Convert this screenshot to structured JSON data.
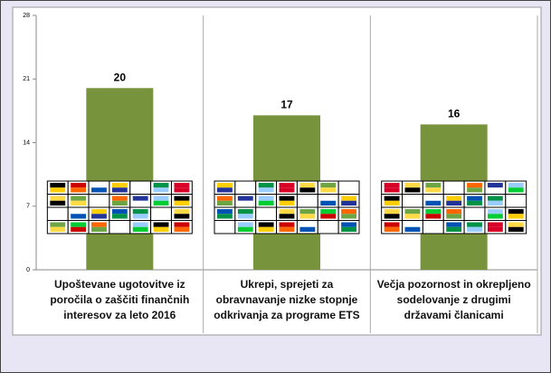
{
  "chart_data": {
    "type": "bar",
    "categories": [
      "Upoštevane ugotovitve iz poročila o zaščiti finančnih interesov za leto 2016",
      "Ukrepi, sprejeti za obravnavanje nizke stopnje odkrivanja za programe ETS",
      "Večja pozornost in okrepljeno sodelovanje z drugimi državami članicami"
    ],
    "values": [
      20,
      17,
      16
    ],
    "color": "#77933c",
    "ylim": [
      0,
      28
    ],
    "yticks": [
      0,
      7,
      14,
      21,
      28
    ]
  }
}
